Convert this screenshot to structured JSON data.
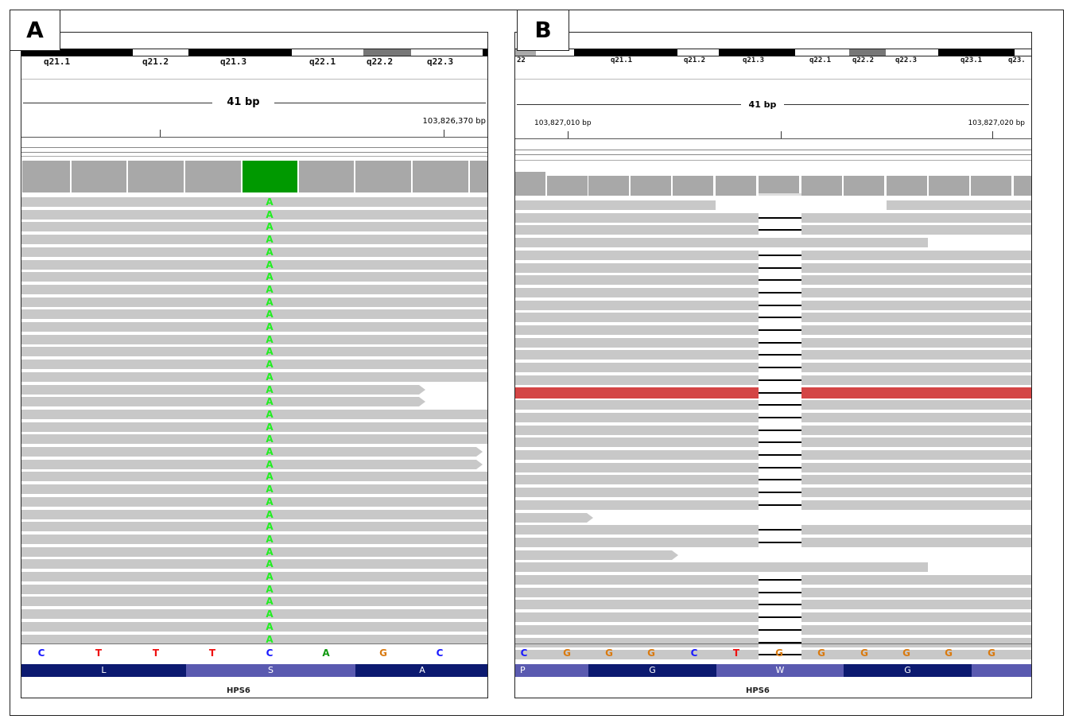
{
  "panel_a": {
    "label": "A",
    "bands": [
      "q21.1",
      "q21.2",
      "q21.3",
      "q22.1",
      "q22.2",
      "q22.3"
    ],
    "ruler_span": "41 bp",
    "coordinate": "103,826,370 bp",
    "read_allele": "A",
    "bases": [
      "C",
      "T",
      "T",
      "T",
      "C",
      "A",
      "G",
      "C"
    ],
    "amino_acids": [
      "L",
      "S",
      "A"
    ],
    "gene": "HPS6"
  },
  "panel_b": {
    "label": "B",
    "bands": [
      "22",
      "q21.1",
      "q21.2",
      "q21.3",
      "q22.1",
      "q22.2",
      "q22.3",
      "q23.1",
      "q23."
    ],
    "ruler_span": "41 bp",
    "coordinate_left": "103,827,010 bp",
    "coordinate_right": "103,827,020 bp",
    "bases": [
      "C",
      "G",
      "G",
      "G",
      "C",
      "T",
      "G",
      "G",
      "G",
      "G",
      "G",
      "G"
    ],
    "amino_acids": [
      "P",
      "G",
      "W",
      "G"
    ],
    "gene": "HPS6"
  },
  "colors": {
    "base_C": "#1a1aff",
    "base_T": "#ee1111",
    "base_A": "#119911",
    "base_G": "#d97a10",
    "snp_fill": "#009900",
    "highlight_read": "#d44545",
    "aa_dark": "#0c1a70",
    "aa_light": "#5a5ab0"
  }
}
